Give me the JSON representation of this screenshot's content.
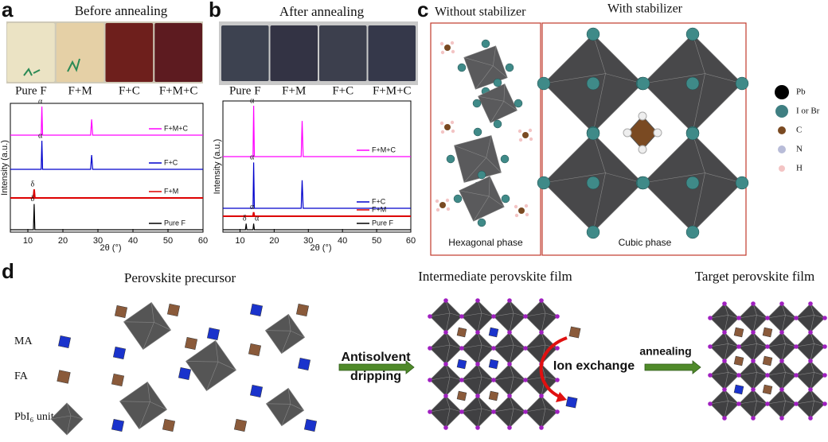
{
  "panel_a": {
    "label": "a",
    "title": "Before annealing",
    "samples": [
      "Pure F",
      "F+M",
      "F+C",
      "F+M+C"
    ],
    "chart": {
      "type": "line",
      "xlabel": "2θ (°)",
      "ylabel": "Intensity (a.u.)",
      "xlim": [
        5,
        60
      ],
      "xticks": [
        10,
        20,
        30,
        40,
        50,
        60
      ],
      "series": [
        {
          "name": "F+M+C",
          "color": "#ff00ff",
          "x": [
            5,
            13.8,
            14,
            14.2,
            27.9,
            28.2,
            28.5,
            60
          ],
          "values": [
            0,
            0,
            1,
            0,
            0,
            0.55,
            0,
            0
          ],
          "peak_labels": [
            {
              "text": "α",
              "x": 14
            }
          ]
        },
        {
          "name": "F+C",
          "color": "#0000cc",
          "x": [
            5,
            13.8,
            14,
            14.2,
            27.9,
            28.2,
            28.5,
            60
          ],
          "values": [
            0,
            0,
            1,
            0,
            0,
            0.5,
            0,
            0
          ],
          "peak_labels": [
            {
              "text": "α",
              "x": 14
            }
          ]
        },
        {
          "name": "F+M",
          "color": "#dd0000",
          "x": [
            5,
            11.6,
            11.8,
            12.0,
            60
          ],
          "values": [
            0,
            0,
            0.3,
            0,
            0
          ],
          "peak_labels": [
            {
              "text": "δ",
              "x": 11.8
            }
          ]
        },
        {
          "name": "Pure F",
          "color": "#000000",
          "x": [
            5,
            11.6,
            11.8,
            12.0,
            60
          ],
          "values": [
            0,
            0,
            0.9,
            0,
            0
          ],
          "peak_labels": [
            {
              "text": "δ",
              "x": 11.8
            }
          ]
        }
      ]
    }
  },
  "panel_b": {
    "label": "b",
    "title": "After annealing",
    "samples": [
      "Pure F",
      "F+M",
      "F+C",
      "F+M+C"
    ],
    "chart": {
      "type": "line",
      "xlabel": "2θ (°)",
      "ylabel": "Intensity (a.u.)",
      "xlim": [
        5,
        60
      ],
      "xticks": [
        10,
        20,
        30,
        40,
        50,
        60
      ],
      "series": [
        {
          "name": "F+M+C",
          "color": "#ff00ff",
          "x": [
            5,
            13.8,
            14,
            14.2,
            27.9,
            28.2,
            28.5,
            60
          ],
          "values": [
            0,
            0,
            1,
            0,
            0,
            0.7,
            0,
            0
          ],
          "peak_labels": [
            {
              "text": "α",
              "x": 14
            }
          ]
        },
        {
          "name": "F+C",
          "color": "#0000cc",
          "x": [
            5,
            13.8,
            14,
            14.2,
            27.9,
            28.2,
            28.5,
            60
          ],
          "values": [
            0,
            0,
            0.9,
            0,
            0,
            0.55,
            0,
            0
          ],
          "peak_labels": [
            {
              "text": "α",
              "x": 14
            }
          ]
        },
        {
          "name": "F+M",
          "color": "#dd0000",
          "x": [
            5,
            13.8,
            14,
            14.2,
            60
          ],
          "values": [
            0,
            0,
            0.08,
            0,
            0
          ],
          "peak_labels": [
            {
              "text": "α",
              "x": 14
            }
          ]
        },
        {
          "name": "Pure F",
          "color": "#000000",
          "x": [
            5,
            11.6,
            11.8,
            12.0,
            13.8,
            14,
            14.2,
            60
          ],
          "values": [
            0,
            0,
            0.12,
            0,
            0,
            0.12,
            0,
            0
          ],
          "peak_labels": [
            {
              "text": "δ",
              "x": 11.8
            },
            {
              "text": "α",
              "x": 14
            }
          ]
        }
      ]
    }
  },
  "panel_c": {
    "label": "c",
    "left_title": "Without stabilizer",
    "right_title": "With stabilizer",
    "left_caption": "Hexagonal phase",
    "right_caption": "Cubic phase",
    "legend": [
      "Pb",
      "I or Br",
      "C",
      "N",
      "H"
    ]
  },
  "panel_d": {
    "label": "d",
    "precursor_title": "Perovskite precursor",
    "intermediate_title": "Intermediate perovskite film",
    "target_title": "Target perovskite film",
    "species": [
      "MA",
      "FA",
      "PbI₆ unit"
    ],
    "step1": [
      "Antisolvent",
      "dripping"
    ],
    "ion_exchange": "Ion exchange",
    "step2": "annealing"
  }
}
